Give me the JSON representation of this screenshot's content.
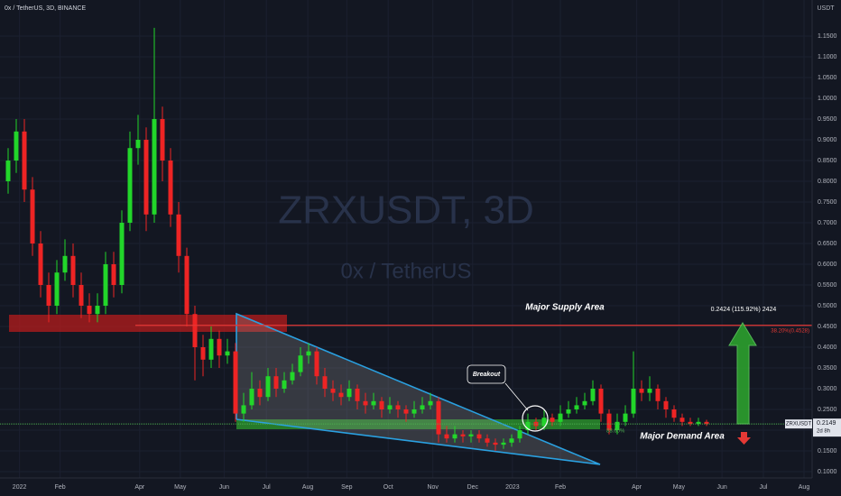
{
  "chart_data": {
    "type": "candlestick",
    "title": "0x / TetherUS, 3D, BINANCE",
    "watermark": "ZRXUSDT, 3D",
    "watermark_subtitle": "0x / TetherUS",
    "y_axis_label": "USDT",
    "up_color": "#22d62a",
    "down_color": "#ee2424",
    "x": [
      1,
      2,
      3,
      4,
      5,
      6,
      7,
      8,
      9,
      10,
      11,
      12,
      13,
      14,
      15,
      16,
      17,
      18,
      19,
      20,
      21,
      22,
      23,
      24,
      25,
      26,
      27,
      28,
      29,
      30,
      31,
      32,
      33,
      34,
      35,
      36,
      37,
      38,
      39,
      40,
      41,
      42,
      43,
      44,
      45,
      46,
      47,
      48,
      49,
      50,
      51,
      52,
      53,
      54,
      55,
      56,
      57,
      58,
      59,
      60,
      61,
      62,
      63,
      64,
      65,
      66,
      67,
      68,
      69,
      70,
      71,
      72,
      73,
      74,
      75,
      76,
      77,
      78,
      79,
      80,
      81,
      82,
      83,
      84,
      85,
      86,
      87
    ],
    "open": [
      0.8,
      0.85,
      0.92,
      0.78,
      0.65,
      0.55,
      0.5,
      0.58,
      0.62,
      0.55,
      0.5,
      0.48,
      0.5,
      0.6,
      0.55,
      0.7,
      0.88,
      0.9,
      0.72,
      0.95,
      0.85,
      0.72,
      0.62,
      0.48,
      0.4,
      0.37,
      0.42,
      0.38,
      0.39,
      0.24,
      0.26,
      0.3,
      0.28,
      0.33,
      0.3,
      0.32,
      0.34,
      0.38,
      0.39,
      0.33,
      0.3,
      0.29,
      0.28,
      0.3,
      0.27,
      0.26,
      0.27,
      0.25,
      0.26,
      0.25,
      0.24,
      0.25,
      0.26,
      0.27,
      0.19,
      0.18,
      0.19,
      0.185,
      0.19,
      0.18,
      0.17,
      0.165,
      0.17,
      0.18,
      0.2,
      0.22,
      0.21,
      0.23,
      0.22,
      0.24,
      0.25,
      0.26,
      0.27,
      0.3,
      0.24,
      0.2,
      0.22,
      0.24,
      0.3,
      0.29,
      0.3,
      0.27,
      0.25,
      0.23,
      0.22,
      0.215,
      0.22
    ],
    "high": [
      0.88,
      0.95,
      0.95,
      0.81,
      0.68,
      0.58,
      0.61,
      0.66,
      0.65,
      0.58,
      0.53,
      0.53,
      0.63,
      0.63,
      0.73,
      0.92,
      0.96,
      0.93,
      1.17,
      0.98,
      0.88,
      0.75,
      0.64,
      0.5,
      0.43,
      0.45,
      0.44,
      0.42,
      0.41,
      0.29,
      0.34,
      0.32,
      0.35,
      0.35,
      0.34,
      0.36,
      0.4,
      0.41,
      0.4,
      0.35,
      0.32,
      0.31,
      0.32,
      0.31,
      0.29,
      0.29,
      0.28,
      0.28,
      0.27,
      0.26,
      0.27,
      0.28,
      0.29,
      0.28,
      0.21,
      0.21,
      0.2,
      0.2,
      0.2,
      0.19,
      0.18,
      0.18,
      0.19,
      0.21,
      0.24,
      0.23,
      0.25,
      0.24,
      0.26,
      0.27,
      0.28,
      0.29,
      0.32,
      0.31,
      0.25,
      0.24,
      0.26,
      0.39,
      0.32,
      0.33,
      0.31,
      0.28,
      0.26,
      0.24,
      0.23,
      0.23,
      0.225
    ],
    "low": [
      0.77,
      0.82,
      0.75,
      0.62,
      0.52,
      0.46,
      0.48,
      0.56,
      0.52,
      0.47,
      0.46,
      0.46,
      0.48,
      0.52,
      0.53,
      0.68,
      0.84,
      0.68,
      0.7,
      0.8,
      0.69,
      0.58,
      0.45,
      0.32,
      0.33,
      0.35,
      0.35,
      0.36,
      0.22,
      0.22,
      0.25,
      0.26,
      0.27,
      0.28,
      0.29,
      0.31,
      0.33,
      0.36,
      0.31,
      0.28,
      0.27,
      0.26,
      0.27,
      0.25,
      0.24,
      0.25,
      0.23,
      0.24,
      0.23,
      0.22,
      0.23,
      0.24,
      0.25,
      0.17,
      0.17,
      0.17,
      0.17,
      0.17,
      0.17,
      0.16,
      0.15,
      0.155,
      0.16,
      0.17,
      0.19,
      0.2,
      0.2,
      0.21,
      0.21,
      0.23,
      0.24,
      0.25,
      0.26,
      0.22,
      0.19,
      0.19,
      0.21,
      0.23,
      0.27,
      0.27,
      0.25,
      0.23,
      0.22,
      0.21,
      0.21,
      0.21,
      0.21
    ],
    "close": [
      0.85,
      0.92,
      0.78,
      0.65,
      0.55,
      0.5,
      0.58,
      0.62,
      0.55,
      0.5,
      0.48,
      0.5,
      0.6,
      0.55,
      0.7,
      0.88,
      0.9,
      0.72,
      0.95,
      0.85,
      0.72,
      0.62,
      0.48,
      0.4,
      0.37,
      0.42,
      0.38,
      0.39,
      0.24,
      0.26,
      0.3,
      0.28,
      0.33,
      0.3,
      0.32,
      0.34,
      0.38,
      0.39,
      0.33,
      0.3,
      0.29,
      0.28,
      0.3,
      0.27,
      0.26,
      0.27,
      0.25,
      0.26,
      0.25,
      0.24,
      0.25,
      0.26,
      0.27,
      0.19,
      0.18,
      0.19,
      0.185,
      0.19,
      0.18,
      0.17,
      0.165,
      0.17,
      0.18,
      0.2,
      0.22,
      0.21,
      0.23,
      0.22,
      0.24,
      0.25,
      0.26,
      0.27,
      0.3,
      0.24,
      0.2,
      0.22,
      0.24,
      0.3,
      0.29,
      0.3,
      0.27,
      0.25,
      0.23,
      0.22,
      0.215,
      0.22,
      0.2149
    ],
    "xlim": [
      0,
      100
    ],
    "xticks": [
      {
        "value": 2.4,
        "label": "2022"
      },
      {
        "value": 7.4,
        "label": "Feb"
      },
      {
        "value": 17.2,
        "label": "Apr"
      },
      {
        "value": 22.2,
        "label": "May"
      },
      {
        "value": 27.6,
        "label": "Jun"
      },
      {
        "value": 32.8,
        "label": "Jul"
      },
      {
        "value": 37.9,
        "label": "Aug"
      },
      {
        "value": 42.7,
        "label": "Sep"
      },
      {
        "value": 47.8,
        "label": "Oct"
      },
      {
        "value": 53.3,
        "label": "Nov"
      },
      {
        "value": 58.2,
        "label": "Dec"
      },
      {
        "value": 63.1,
        "label": "2023"
      },
      {
        "value": 69,
        "label": "Feb"
      },
      {
        "value": 78.4,
        "label": "Apr"
      },
      {
        "value": 83.6,
        "label": "May"
      },
      {
        "value": 88.9,
        "label": "Jun"
      },
      {
        "value": 94,
        "label": "Jul"
      },
      {
        "value": 99,
        "label": "Aug"
      }
    ],
    "ylim": [
      0.0413,
      1.237
    ],
    "yticks": [
      {
        "value": 0.1,
        "label": "0.1000"
      },
      {
        "value": 0.15,
        "label": "0.1500"
      },
      {
        "value": 0.2,
        "label": "0.2000"
      },
      {
        "value": 0.25,
        "label": "0.2500"
      },
      {
        "value": 0.3,
        "label": "0.3000"
      },
      {
        "value": 0.35,
        "label": "0.3500"
      },
      {
        "value": 0.4,
        "label": "0.4000"
      },
      {
        "value": 0.45,
        "label": "0.4500"
      },
      {
        "value": 0.5,
        "label": "0.5000"
      },
      {
        "value": 0.55,
        "label": "0.5500"
      },
      {
        "value": 0.6,
        "label": "0.6000"
      },
      {
        "value": 0.65,
        "label": "0.6500"
      },
      {
        "value": 0.7,
        "label": "0.7000"
      },
      {
        "value": 0.75,
        "label": "0.7500"
      },
      {
        "value": 0.8,
        "label": "0.8000"
      },
      {
        "value": 0.85,
        "label": "0.8500"
      },
      {
        "value": 0.9,
        "label": "0.9000"
      },
      {
        "value": 0.95,
        "label": "0.9500"
      },
      {
        "value": 1.0,
        "label": "1.0000"
      },
      {
        "value": 1.05,
        "label": "1.0500"
      },
      {
        "value": 1.1,
        "label": "1.1000"
      },
      {
        "value": 1.15,
        "label": "1.1500"
      }
    ],
    "supply_level": {
      "value": 0.4528,
      "label": "38.20%(0.4528)"
    },
    "last_price": 0.2149,
    "price_tag_symbol": "ZRXUSDT",
    "price_tag_timer": "2d 8h",
    "annotations": {
      "supply": "Major Supply Area",
      "demand": "Major Demand Area",
      "breakout": "Breakout",
      "target": "0.2424 (115.92%) 2424",
      "fib_low": "88.60%"
    }
  }
}
